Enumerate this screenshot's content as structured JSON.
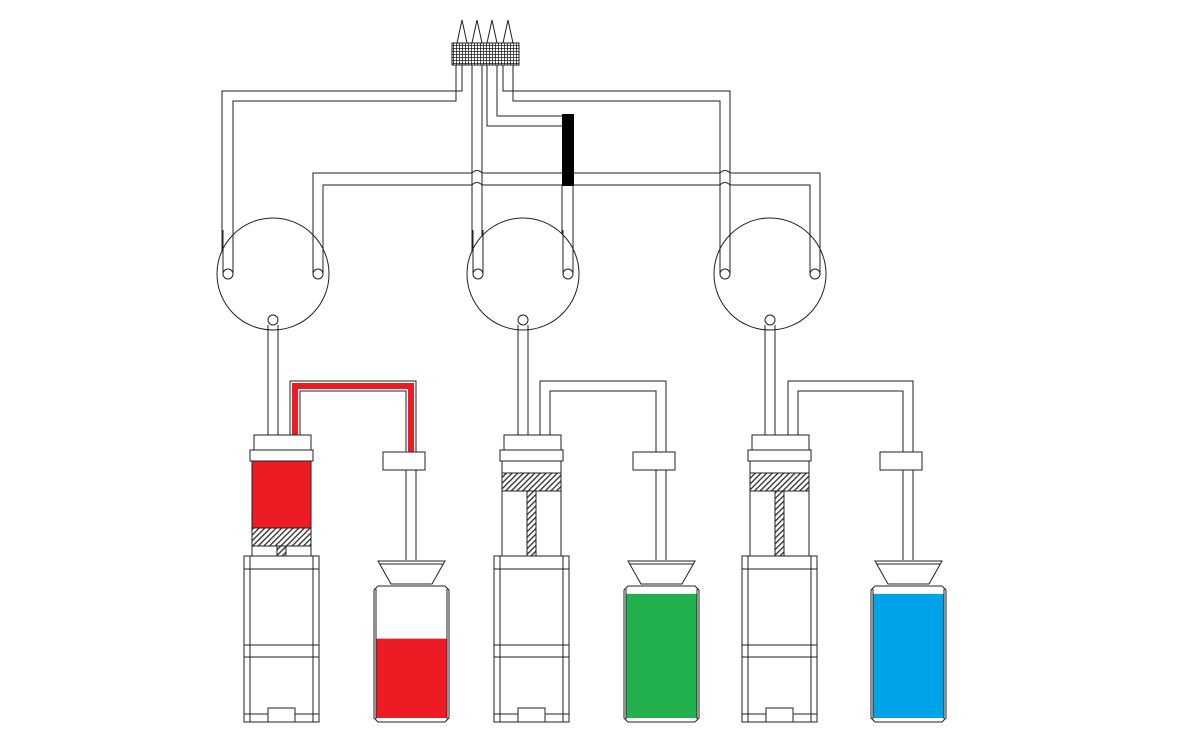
{
  "colors": {
    "line": "#231f20",
    "background": "#ffffff",
    "hatch": "#2b2b2b",
    "black_bar": "#000000",
    "active_tube": "#ed1c24"
  },
  "units": [
    {
      "name": "unit-1",
      "liquid_color": "#ed1c24",
      "reservoir_fill_fraction": 0.62,
      "syringe_filled": true,
      "tube_active": true
    },
    {
      "name": "unit-2",
      "liquid_color": "#22b14c",
      "reservoir_fill_fraction": 0.97,
      "syringe_filled": false,
      "tube_active": false
    },
    {
      "name": "unit-3",
      "liquid_color": "#00a2e8",
      "reservoir_fill_fraction": 0.97,
      "syringe_filled": false,
      "tube_active": false
    }
  ]
}
